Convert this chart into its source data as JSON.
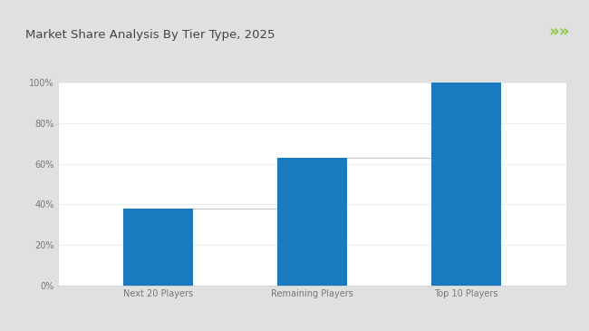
{
  "title": "Market Share Analysis By Tier Type, 2025",
  "categories": [
    "Next 20 Players",
    "Remaining Players",
    "Top 10 Players"
  ],
  "values": [
    38,
    63,
    100
  ],
  "bar_color": "#1a7abf",
  "connector_color": "#c8c8c8",
  "ylim": [
    0,
    100
  ],
  "yticks": [
    0,
    20,
    40,
    60,
    80,
    100
  ],
  "ytick_labels": [
    "0%",
    "20%",
    "40%",
    "60%",
    "80%",
    "100%"
  ],
  "outer_bg_color": "#e0e0e0",
  "card_bg_color": "#ffffff",
  "plot_bg_color": "#ffffff",
  "title_fontsize": 9.5,
  "tick_fontsize": 7,
  "bar_width": 0.45,
  "green_line_color": "#8dc63f",
  "chevron_color": "#8dc63f",
  "title_color": "#444444"
}
